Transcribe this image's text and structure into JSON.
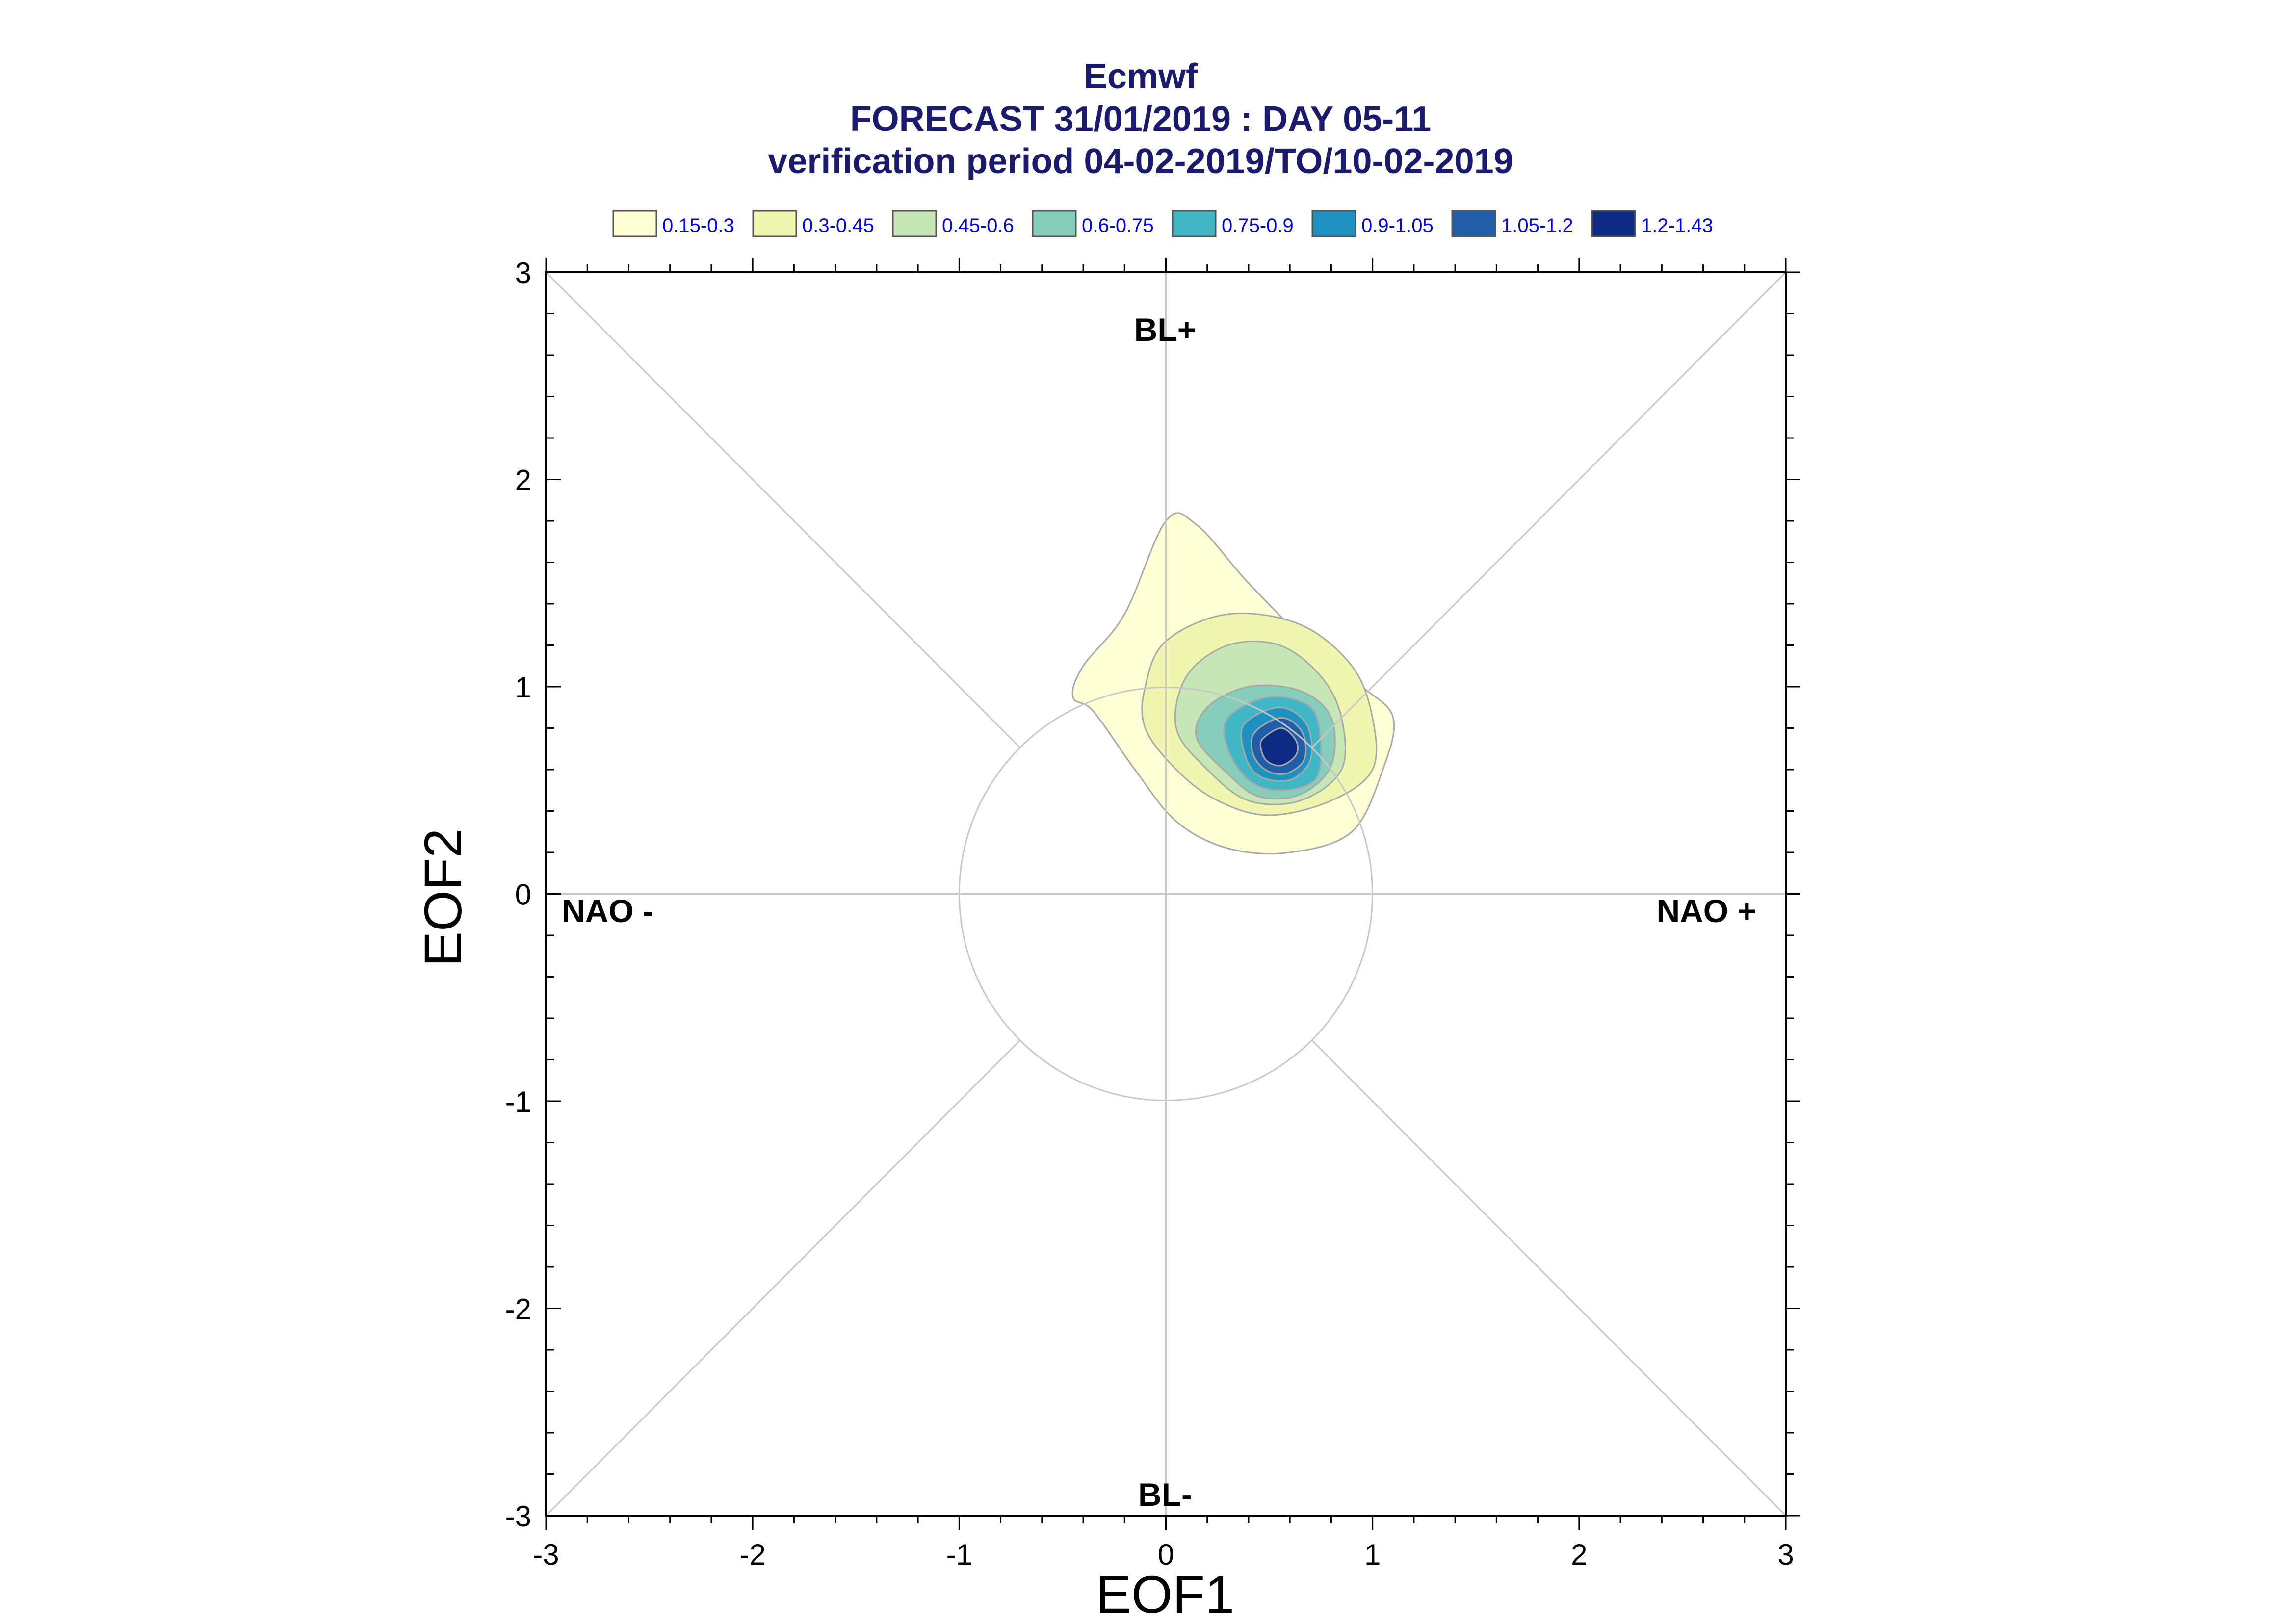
{
  "chart_data": {
    "type": "contour",
    "title_lines": [
      "Ecmwf",
      "FORECAST 31/01/2019 : DAY 05-11",
      "verification period 04-02-2019/TO/10-02-2019"
    ],
    "xlabel": "EOF1",
    "ylabel": "EOF2",
    "xlim": [
      -3,
      3
    ],
    "ylim": [
      -3,
      3
    ],
    "x_ticks": [
      "-3",
      "-2",
      "-1",
      "0",
      "1",
      "2",
      "3"
    ],
    "y_ticks": [
      "-3",
      "-2",
      "-1",
      "0",
      "1",
      "2",
      "3"
    ],
    "regions": {
      "top": "BL+",
      "bottom": "BL-",
      "left": "NAO -",
      "right": "NAO +"
    },
    "reference_circle_radius": 1,
    "legend": [
      {
        "label": "0.15-0.3",
        "color": "#ffffd6"
      },
      {
        "label": "0.3-0.45",
        "color": "#eef7b0"
      },
      {
        "label": "0.45-0.6",
        "color": "#c6e6b6"
      },
      {
        "label": "0.6-0.75",
        "color": "#86cdbb"
      },
      {
        "label": "0.75-0.9",
        "color": "#41b6c4"
      },
      {
        "label": "0.9-1.05",
        "color": "#1d91c0"
      },
      {
        "label": "1.05-1.2",
        "color": "#225ea8"
      },
      {
        "label": "1.2-1.43",
        "color": "#0c2c84"
      }
    ],
    "density_levels": [
      {
        "range": "0.15-0.3",
        "outline": [
          [
            0.0,
            1.8
          ],
          [
            0.15,
            1.78
          ],
          [
            0.4,
            1.5
          ],
          [
            0.7,
            1.2
          ],
          [
            0.95,
            1.0
          ],
          [
            1.1,
            0.85
          ],
          [
            1.05,
            0.6
          ],
          [
            0.9,
            0.3
          ],
          [
            0.6,
            0.2
          ],
          [
            0.3,
            0.22
          ],
          [
            0.05,
            0.35
          ],
          [
            -0.15,
            0.6
          ],
          [
            -0.35,
            0.88
          ],
          [
            -0.45,
            0.95
          ],
          [
            -0.4,
            1.1
          ],
          [
            -0.2,
            1.35
          ]
        ]
      },
      {
        "range": "0.3-0.45",
        "outline": [
          [
            0.0,
            1.22
          ],
          [
            0.3,
            1.35
          ],
          [
            0.65,
            1.3
          ],
          [
            0.9,
            1.1
          ],
          [
            1.0,
            0.85
          ],
          [
            1.0,
            0.6
          ],
          [
            0.8,
            0.45
          ],
          [
            0.5,
            0.38
          ],
          [
            0.25,
            0.45
          ],
          [
            0.05,
            0.6
          ],
          [
            -0.1,
            0.8
          ],
          [
            -0.1,
            1.0
          ]
        ]
      },
      {
        "range": "0.45-0.6",
        "outline": [
          [
            0.1,
            1.05
          ],
          [
            0.3,
            1.2
          ],
          [
            0.55,
            1.2
          ],
          [
            0.75,
            1.05
          ],
          [
            0.85,
            0.85
          ],
          [
            0.85,
            0.6
          ],
          [
            0.65,
            0.45
          ],
          [
            0.4,
            0.45
          ],
          [
            0.2,
            0.6
          ],
          [
            0.05,
            0.8
          ]
        ]
      },
      {
        "range": "0.6-0.75",
        "outline": [
          [
            0.2,
            0.9
          ],
          [
            0.4,
            1.0
          ],
          [
            0.65,
            0.98
          ],
          [
            0.8,
            0.85
          ],
          [
            0.8,
            0.62
          ],
          [
            0.65,
            0.48
          ],
          [
            0.45,
            0.47
          ],
          [
            0.3,
            0.58
          ],
          [
            0.15,
            0.75
          ]
        ]
      },
      {
        "range": "0.75-0.9",
        "outline": [
          [
            0.3,
            0.85
          ],
          [
            0.5,
            0.95
          ],
          [
            0.7,
            0.9
          ],
          [
            0.75,
            0.72
          ],
          [
            0.72,
            0.55
          ],
          [
            0.55,
            0.5
          ],
          [
            0.4,
            0.55
          ],
          [
            0.3,
            0.7
          ]
        ]
      },
      {
        "range": "0.9-1.05",
        "outline": [
          [
            0.38,
            0.82
          ],
          [
            0.55,
            0.9
          ],
          [
            0.68,
            0.82
          ],
          [
            0.7,
            0.65
          ],
          [
            0.6,
            0.55
          ],
          [
            0.45,
            0.57
          ],
          [
            0.38,
            0.68
          ]
        ]
      },
      {
        "range": "1.05-1.2",
        "outline": [
          [
            0.43,
            0.78
          ],
          [
            0.56,
            0.85
          ],
          [
            0.66,
            0.78
          ],
          [
            0.67,
            0.65
          ],
          [
            0.58,
            0.58
          ],
          [
            0.48,
            0.6
          ],
          [
            0.42,
            0.68
          ]
        ]
      },
      {
        "range": "1.2-1.43",
        "outline": [
          [
            0.47,
            0.75
          ],
          [
            0.56,
            0.8
          ],
          [
            0.63,
            0.74
          ],
          [
            0.63,
            0.67
          ],
          [
            0.56,
            0.62
          ],
          [
            0.49,
            0.64
          ],
          [
            0.46,
            0.7
          ]
        ]
      }
    ]
  }
}
